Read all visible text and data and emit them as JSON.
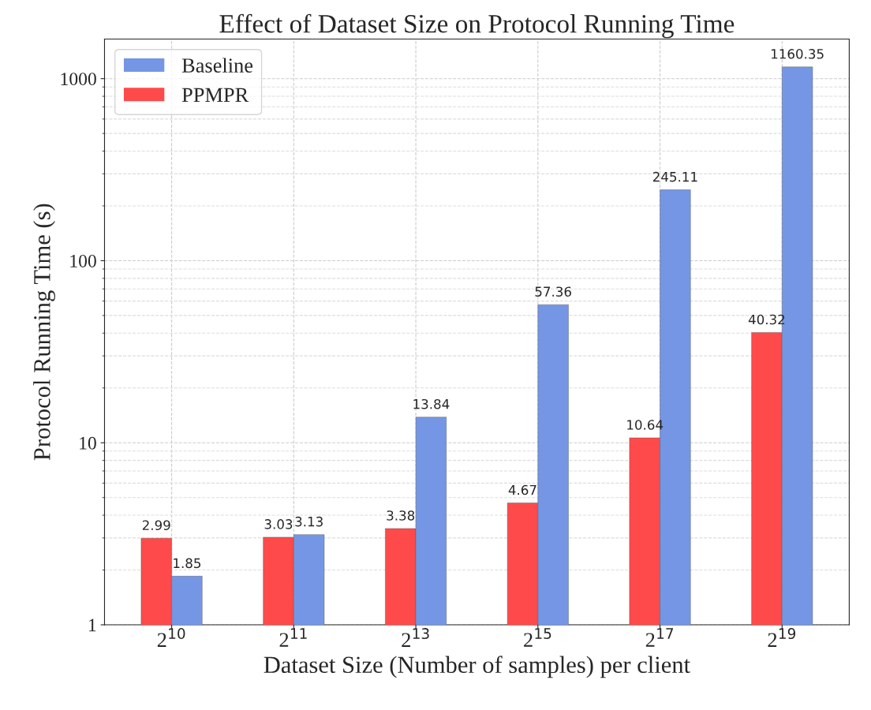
{
  "chart_data": {
    "type": "bar",
    "title": "Effect of Dataset Size on Protocol Running Time",
    "xlabel": "Dataset Size (Number of samples) per client",
    "ylabel": "Protocol Running Time (s)",
    "categories": [
      "2$^{10}$",
      "2$^{11}$",
      "2$^{13}$",
      "2$^{15}$",
      "2$^{17}$",
      "2$^{19}$"
    ],
    "series": [
      {
        "name": "PPMPR",
        "color": "#fe4a4a",
        "values": [
          2.99,
          3.03,
          3.38,
          4.67,
          10.64,
          40.32
        ]
      },
      {
        "name": "Baseline",
        "color": "#7596e4",
        "values": [
          1.85,
          3.13,
          13.84,
          57.36,
          245.11,
          1160.35
        ]
      }
    ],
    "log": "y",
    "ylim": [
      1,
      1650
    ],
    "yticks": [
      1,
      10,
      100,
      1000
    ],
    "grid": true,
    "legend": "top left",
    "data_labels": true
  }
}
